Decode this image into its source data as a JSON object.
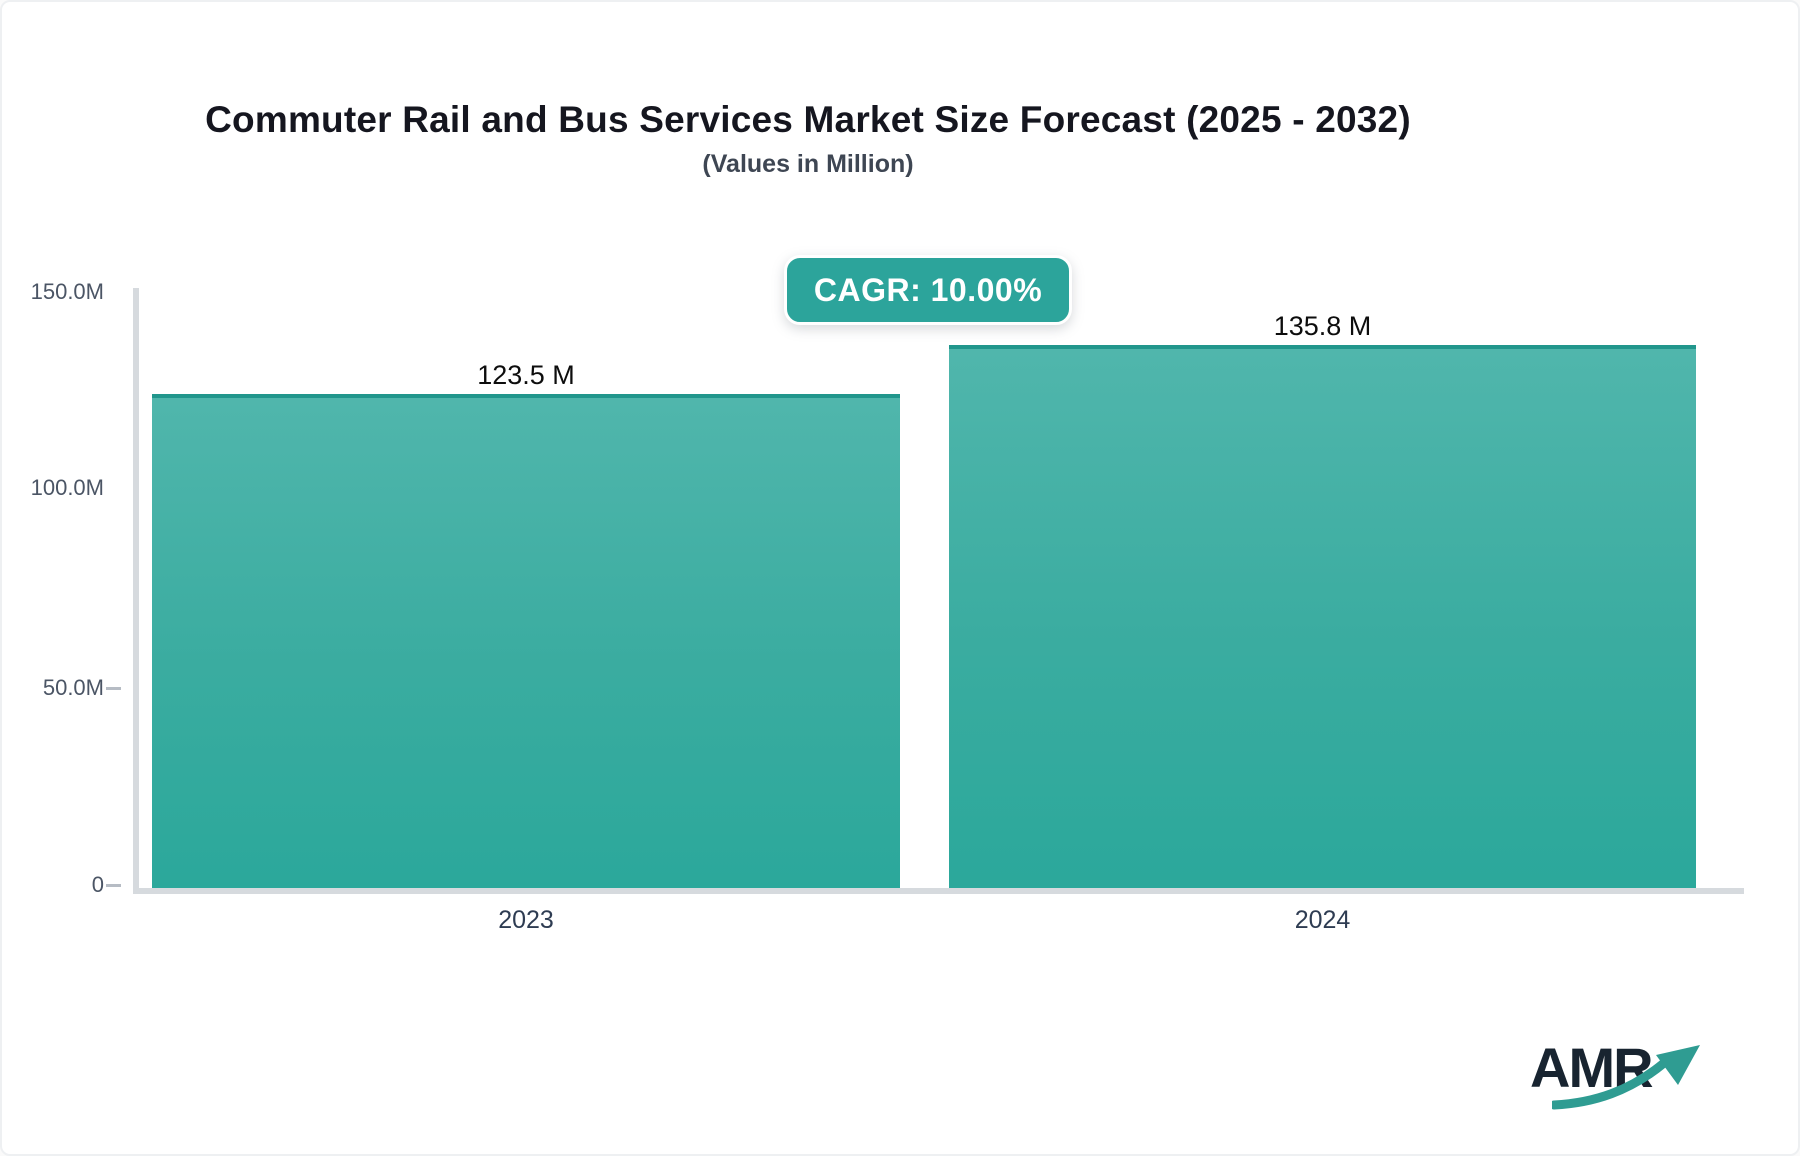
{
  "chart_data": {
    "type": "bar",
    "title": "Commuter Rail and Bus Services Market Size Forecast (2025 - 2032)",
    "subtitle": "(Values in Million)",
    "cagr_badge": "CAGR: 10.00%",
    "categories": [
      "2023",
      "2024"
    ],
    "values": [
      123.5,
      135.8
    ],
    "value_labels": [
      "123.5 M",
      "135.8 M"
    ],
    "unit": "Million",
    "ylim": [
      0,
      150
    ],
    "y_tick_labels": [
      "150.0M",
      "100.0M",
      "50.0M",
      "0"
    ],
    "y_tick_values": [
      150,
      100,
      50,
      0
    ],
    "xlabel": "",
    "ylabel": "",
    "grid": false,
    "legend": false
  },
  "logo": {
    "text": "AMR"
  },
  "colors": {
    "bar_gradient_top": "#50b6ac",
    "bar_gradient_bottom": "#2ba89b",
    "bar_top_border": "#21968c",
    "badge_background": "#2ca49b",
    "badge_text": "#ffffff",
    "axis_line": "#d6dade",
    "title_text": "#15161f",
    "logo_navy": "#182430",
    "logo_arrow_teal": "#2f9c92"
  }
}
